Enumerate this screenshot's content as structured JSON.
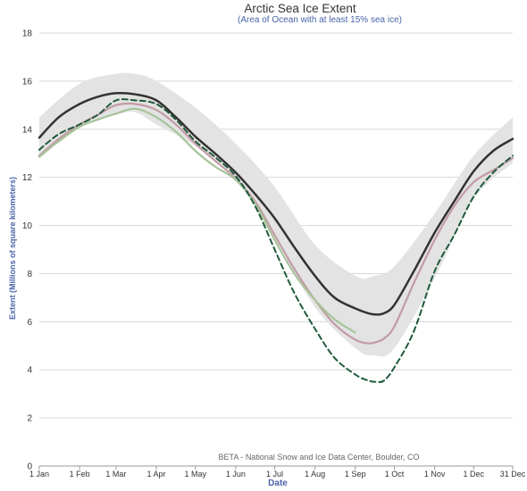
{
  "chart_data": {
    "type": "line",
    "title": "Arctic Sea Ice Extent",
    "subtitle": "(Area of Ocean with at least 15% sea ice)",
    "xlabel": "Date",
    "ylabel": "Extent (Millions of square kilometers)",
    "credit": "BETA - National Snow and Ice Data Center, Boulder, CO",
    "xlim": [
      1,
      365
    ],
    "ylim": [
      0,
      18
    ],
    "grid": true,
    "x_ticks": [
      {
        "day": 1,
        "label": "1 Jan"
      },
      {
        "day": 32,
        "label": "1 Feb"
      },
      {
        "day": 60,
        "label": "1 Mar"
      },
      {
        "day": 91,
        "label": "1 Apr"
      },
      {
        "day": 121,
        "label": "1 May"
      },
      {
        "day": 152,
        "label": "1 Jun"
      },
      {
        "day": 182,
        "label": "1 Jul"
      },
      {
        "day": 213,
        "label": "1 Aug"
      },
      {
        "day": 244,
        "label": "1 Sep"
      },
      {
        "day": 274,
        "label": "1 Oct"
      },
      {
        "day": 305,
        "label": "1 Nov"
      },
      {
        "day": 335,
        "label": "1 Dec"
      },
      {
        "day": 365,
        "label": "31 Dec"
      }
    ],
    "y_ticks": [
      0,
      2,
      4,
      6,
      8,
      10,
      12,
      14,
      16,
      18
    ],
    "band": {
      "color": "#e3e3e3",
      "x": [
        1,
        32,
        60,
        75,
        91,
        121,
        152,
        182,
        213,
        244,
        258,
        274,
        305,
        335,
        365
      ],
      "upper": [
        14.5,
        15.9,
        16.3,
        16.3,
        16.0,
        14.9,
        13.4,
        11.6,
        9.2,
        7.9,
        7.9,
        8.3,
        10.5,
        12.9,
        14.5
      ],
      "lower": [
        12.8,
        14.1,
        14.6,
        14.7,
        14.2,
        13.3,
        12.0,
        9.5,
        6.6,
        4.9,
        4.6,
        4.9,
        7.8,
        11.1,
        12.6
      ]
    },
    "series": [
      {
        "color": "#333333",
        "dash": "none",
        "width": 2.5,
        "x": [
          1,
          16,
          32,
          46,
          60,
          75,
          91,
          106,
          121,
          136,
          152,
          167,
          182,
          197,
          213,
          228,
          244,
          254,
          260,
          266,
          274,
          289,
          305,
          320,
          335,
          350,
          365
        ],
        "y": [
          13.65,
          14.5,
          15.05,
          15.35,
          15.5,
          15.45,
          15.2,
          14.5,
          13.7,
          13.0,
          12.2,
          11.3,
          10.3,
          9.1,
          7.9,
          7.0,
          6.55,
          6.35,
          6.3,
          6.35,
          6.7,
          8.1,
          9.7,
          11.0,
          12.25,
          13.1,
          13.6
        ]
      },
      {
        "color": "#c19ba6",
        "dash": "none",
        "width": 2.2,
        "x": [
          1,
          16,
          32,
          46,
          60,
          75,
          91,
          106,
          121,
          136,
          152,
          167,
          182,
          197,
          213,
          228,
          244,
          254,
          260,
          266,
          274,
          289,
          305,
          320,
          335,
          350,
          365
        ],
        "y": [
          12.9,
          13.6,
          14.2,
          14.6,
          15.0,
          15.05,
          14.8,
          14.2,
          13.4,
          12.7,
          11.95,
          11.0,
          9.6,
          8.2,
          6.9,
          5.9,
          5.25,
          5.1,
          5.15,
          5.3,
          5.8,
          7.6,
          9.4,
          10.8,
          11.8,
          12.3,
          12.8
        ]
      },
      {
        "color": "#a7c49a",
        "dash": "none",
        "width": 2.2,
        "x": [
          1,
          16,
          32,
          46,
          60,
          75,
          91,
          106,
          121,
          136,
          152,
          167,
          182,
          197,
          213,
          228,
          244
        ],
        "y": [
          12.85,
          13.5,
          14.1,
          14.4,
          14.65,
          14.85,
          14.5,
          13.9,
          13.1,
          12.45,
          11.9,
          10.9,
          9.4,
          8.0,
          6.9,
          6.1,
          5.55
        ]
      },
      {
        "color": "#1f5b3a",
        "dash": "6,4",
        "width": 2.0,
        "x": [
          1,
          16,
          32,
          46,
          60,
          75,
          91,
          106,
          121,
          136,
          152,
          167,
          182,
          197,
          213,
          228,
          244,
          254,
          260,
          266,
          274,
          289,
          305,
          320,
          335,
          350,
          365
        ],
        "y": [
          13.15,
          13.8,
          14.2,
          14.6,
          15.2,
          15.2,
          15.05,
          14.4,
          13.5,
          12.85,
          12.05,
          10.8,
          9.0,
          7.2,
          5.7,
          4.5,
          3.8,
          3.55,
          3.5,
          3.55,
          4.1,
          5.6,
          8.1,
          9.6,
          11.2,
          12.2,
          12.9
        ]
      }
    ]
  }
}
